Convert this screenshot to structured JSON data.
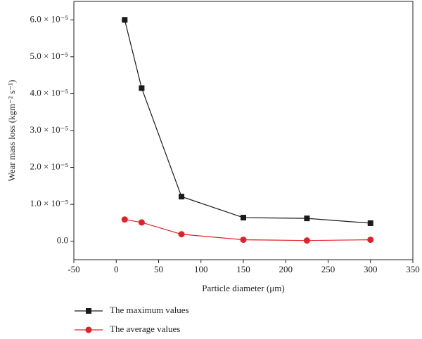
{
  "chart_data": {
    "type": "line",
    "x_label": "Particle diameter (μm)",
    "y_label": "Wear mass loss (kgm⁻² s⁻¹)",
    "series": [
      {
        "name": "The maximum values",
        "color": "#1a1a1a",
        "marker": "square",
        "x": [
          10,
          30,
          77,
          150,
          225,
          300
        ],
        "values": [
          6e-05,
          4.15e-05,
          1.21e-05,
          6.4e-06,
          6.2e-06,
          4.9e-06
        ]
      },
      {
        "name": "The average values",
        "color": "#e3202a",
        "marker": "circle",
        "x": [
          10,
          30,
          77,
          150,
          225,
          300
        ],
        "values": [
          5.9e-06,
          5.1e-06,
          1.9e-06,
          4e-07,
          2e-07,
          4e-07
        ]
      }
    ],
    "xlim": [
      -50,
      350
    ],
    "xticks": [
      -50,
      0,
      50,
      100,
      150,
      200,
      250,
      300,
      350
    ],
    "ylim": [
      -5e-06,
      6.5e-05
    ],
    "yticks": [
      {
        "value": 0,
        "label": "0.0"
      },
      {
        "value": 1e-05,
        "label": "1.0 × 10⁻⁵"
      },
      {
        "value": 2e-05,
        "label": "2.0 × 10⁻⁵"
      },
      {
        "value": 3e-05,
        "label": "3.0 × 10⁻⁵"
      },
      {
        "value": 4e-05,
        "label": "4.0 × 10⁻⁵"
      },
      {
        "value": 5e-05,
        "label": "5.0 × 10⁻⁵"
      },
      {
        "value": 6e-05,
        "label": "6.0 × 10⁻⁵"
      }
    ],
    "legend": "below"
  }
}
